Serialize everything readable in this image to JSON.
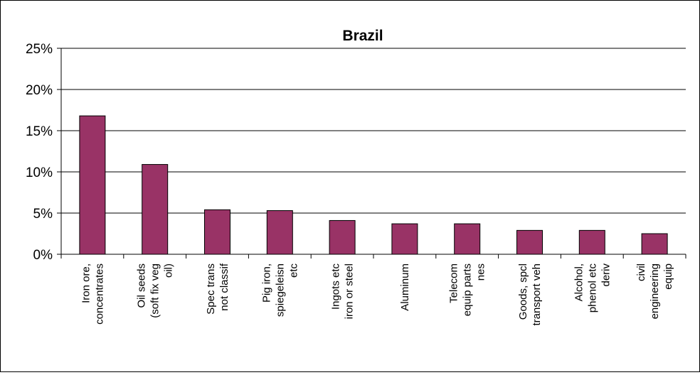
{
  "chart_data": {
    "type": "bar",
    "title": "Brazil",
    "xlabel": "",
    "ylabel": "",
    "ylim": [
      0,
      0.25
    ],
    "y_ticks": [
      "0%",
      "5%",
      "10%",
      "15%",
      "20%",
      "25%"
    ],
    "grid": true,
    "legend": "none",
    "categories": [
      [
        "Iron ore,",
        "concentrates"
      ],
      [
        "Oil seeds",
        "(soft fix veg",
        "oil)"
      ],
      [
        "Spec trans",
        "not classif"
      ],
      [
        "Pig iron,",
        "spiegeleisn",
        "etc"
      ],
      [
        "Ingots etc",
        "iron or steel"
      ],
      [
        "Aluminum"
      ],
      [
        "Telecom",
        "equip parts",
        "nes"
      ],
      [
        "Goods, spcl",
        "transport veh"
      ],
      [
        "Alcohol,",
        "phenol etc",
        "deriv"
      ],
      [
        "civil",
        "engineering",
        "equip"
      ]
    ],
    "values": [
      0.168,
      0.109,
      0.054,
      0.053,
      0.041,
      0.037,
      0.037,
      0.029,
      0.029,
      0.025
    ],
    "bar_color": "#993366"
  }
}
